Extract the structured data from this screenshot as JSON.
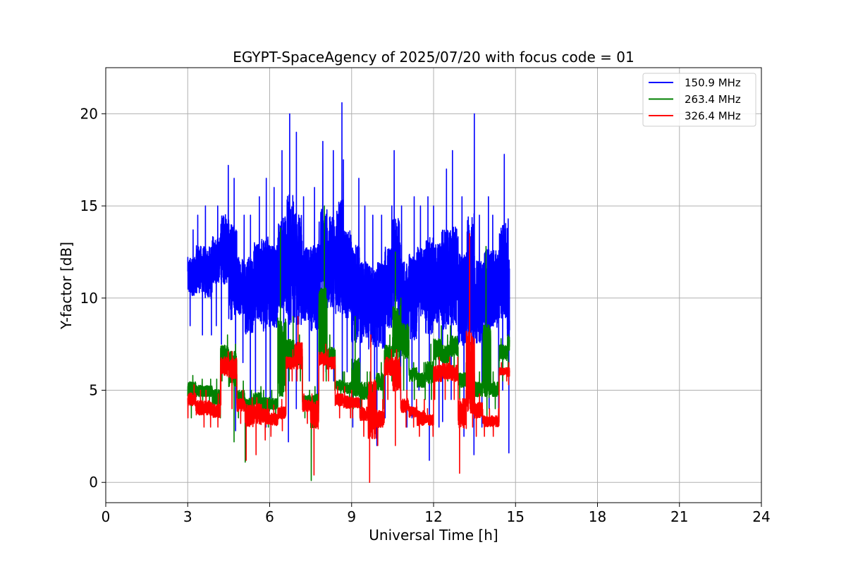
{
  "chart_data": {
    "type": "line",
    "title": "EGYPT-SpaceAgency of 2025/07/20 with focus code = 01",
    "xlabel": "Universal Time [h]",
    "ylabel": "Y-factor [dB]",
    "xlim": [
      0,
      24
    ],
    "ylim": [
      -1.1,
      22.5
    ],
    "xticks": [
      0,
      3,
      6,
      9,
      12,
      15,
      18,
      21,
      24
    ],
    "yticks": [
      0,
      5,
      10,
      15,
      20
    ],
    "grid": true,
    "legend_position": "top-right",
    "series": [
      {
        "name": "150.9 MHz",
        "color": "#0000ff",
        "x": [
          3.0,
          3.3,
          3.6,
          3.9,
          4.2,
          4.5,
          4.8,
          5.1,
          5.4,
          5.7,
          6.0,
          6.3,
          6.6,
          6.9,
          7.2,
          7.5,
          7.8,
          8.1,
          8.4,
          8.7,
          9.0,
          9.3,
          9.6,
          9.9,
          10.2,
          10.5,
          10.8,
          11.1,
          11.4,
          11.7,
          12.0,
          12.3,
          12.6,
          12.9,
          13.2,
          13.5,
          13.8,
          14.1,
          14.4,
          14.7
        ],
        "y": [
          11.0,
          11.5,
          11.0,
          12.0,
          12.5,
          12.0,
          10.5,
          10.5,
          11.0,
          11.0,
          10.5,
          11.5,
          12.0,
          11.0,
          10.5,
          10.5,
          12.0,
          11.5,
          11.0,
          10.5,
          10.0,
          9.5,
          9.5,
          10.0,
          11.0,
          11.5,
          9.5,
          10.0,
          11.0,
          11.5,
          11.5,
          11.0,
          10.5,
          10.0,
          10.5,
          10.0,
          10.5,
          11.0,
          11.0,
          10.5
        ],
        "y_high": [
          13.7,
          14.5,
          15.0,
          15.0,
          17.2,
          16.5,
          14.5,
          14.5,
          15.5,
          16.5,
          16.0,
          18.0,
          20.0,
          19.0,
          15.5,
          16.0,
          18.5,
          18.0,
          20.6,
          17.5,
          16.5,
          15.0,
          14.5,
          14.5,
          15.0,
          18.0,
          15.0,
          15.5,
          15.0,
          15.5,
          15.0,
          17.0,
          18.0,
          15.5,
          20.0,
          14.5,
          15.5,
          14.5,
          17.8,
          14.3
        ],
        "y_low": [
          8.5,
          8.0,
          8.0,
          8.5,
          7.5,
          2.8,
          6.5,
          3.5,
          4.5,
          3.0,
          4.5,
          5.5,
          2.2,
          4.0,
          5.5,
          4.0,
          6.0,
          5.5,
          5.5,
          6.0,
          3.0,
          4.0,
          3.0,
          2.0,
          3.5,
          4.5,
          3.0,
          3.5,
          5.0,
          1.2,
          3.0,
          3.3,
          4.5,
          2.5,
          1.5,
          3.0,
          4.0,
          3.5,
          5.0,
          1.6
        ]
      },
      {
        "name": "263.4 MHz",
        "color": "#008000",
        "x": [
          3.0,
          3.3,
          3.6,
          3.9,
          4.2,
          4.5,
          4.8,
          5.1,
          5.4,
          5.7,
          6.0,
          6.3,
          6.6,
          6.9,
          7.2,
          7.5,
          7.8,
          8.1,
          8.4,
          8.7,
          9.0,
          9.3,
          9.6,
          9.9,
          10.2,
          10.5,
          10.8,
          11.1,
          11.4,
          11.7,
          12.0,
          12.3,
          12.6,
          12.9,
          13.2,
          13.5,
          13.8,
          14.1,
          14.4,
          14.7
        ],
        "y": [
          5.2,
          5.0,
          5.0,
          4.6,
          7.0,
          6.8,
          4.6,
          4.3,
          4.6,
          4.3,
          4.2,
          5.0,
          6.8,
          6.8,
          4.5,
          4.5,
          7.0,
          6.8,
          5.2,
          5.0,
          5.0,
          5.0,
          5.0,
          5.5,
          7.0,
          7.2,
          7.6,
          6.0,
          5.5,
          5.8,
          7.2,
          7.0,
          7.5,
          5.5,
          5.5,
          5.0,
          5.2,
          5.0,
          7.2,
          7.8
        ],
        "y_high": [
          5.8,
          5.6,
          5.6,
          5.6,
          8.0,
          7.5,
          5.5,
          5.0,
          5.2,
          5.0,
          5.0,
          13.8,
          9.0,
          8.0,
          5.0,
          5.2,
          15.0,
          8.0,
          6.0,
          6.0,
          9.0,
          6.0,
          6.0,
          6.5,
          8.0,
          12.5,
          10.0,
          6.5,
          6.5,
          7.5,
          8.5,
          8.0,
          8.5,
          6.5,
          6.5,
          6.0,
          12.8,
          6.0,
          7.8,
          8.0
        ],
        "y_low": [
          3.5,
          4.0,
          4.0,
          3.5,
          5.5,
          2.2,
          3.5,
          1.1,
          3.5,
          3.0,
          3.5,
          4.0,
          5.5,
          5.5,
          3.5,
          0.1,
          5.5,
          5.0,
          4.5,
          4.5,
          4.0,
          3.5,
          3.5,
          4.0,
          5.5,
          5.5,
          5.0,
          4.5,
          4.5,
          4.5,
          5.5,
          5.5,
          5.5,
          4.5,
          4.5,
          4.0,
          3.5,
          4.0,
          5.5,
          6.0
        ]
      },
      {
        "name": "326.4 MHz",
        "color": "#ff0000",
        "x": [
          3.0,
          3.3,
          3.6,
          3.9,
          4.2,
          4.5,
          4.8,
          5.1,
          5.4,
          5.7,
          6.0,
          6.3,
          6.6,
          6.9,
          7.2,
          7.5,
          7.8,
          8.1,
          8.4,
          8.7,
          9.0,
          9.3,
          9.6,
          9.9,
          10.2,
          10.5,
          10.8,
          11.1,
          11.4,
          11.7,
          12.0,
          12.3,
          12.6,
          12.9,
          13.2,
          13.5,
          13.8,
          14.1,
          14.4,
          14.7
        ],
        "y": [
          4.5,
          4.0,
          4.0,
          3.8,
          6.6,
          6.5,
          4.2,
          4.0,
          4.0,
          3.6,
          3.4,
          3.8,
          6.5,
          6.5,
          4.2,
          4.2,
          6.8,
          6.5,
          4.5,
          4.3,
          4.3,
          3.8,
          3.6,
          3.5,
          6.5,
          6.5,
          4.2,
          3.8,
          3.4,
          3.4,
          6.0,
          6.2,
          6.0,
          4.2,
          4.0,
          4.0,
          3.3,
          3.3,
          6.0,
          6.0
        ],
        "y_high": [
          5.3,
          5.0,
          5.0,
          4.8,
          7.1,
          7.1,
          5.0,
          4.6,
          4.6,
          4.5,
          4.2,
          4.5,
          7.2,
          9.0,
          4.8,
          4.8,
          7.5,
          7.2,
          5.2,
          5.2,
          5.0,
          4.5,
          8.0,
          4.5,
          7.2,
          7.2,
          5.0,
          4.5,
          4.5,
          4.0,
          6.8,
          6.8,
          6.8,
          5.0,
          13.5,
          4.8,
          4.0,
          4.0,
          6.5,
          6.5
        ],
        "y_low": [
          3.5,
          3.0,
          3.0,
          3.0,
          4.2,
          4.0,
          3.2,
          1.2,
          1.5,
          2.3,
          2.5,
          2.8,
          5.5,
          5.5,
          3.2,
          0.4,
          5.5,
          5.5,
          3.5,
          3.5,
          3.5,
          2.5,
          0.0,
          2.0,
          4.5,
          2.0,
          3.0,
          3.0,
          2.5,
          2.5,
          4.5,
          4.5,
          4.5,
          0.5,
          3.0,
          2.5,
          2.5,
          2.5,
          5.5,
          5.3
        ]
      }
    ]
  }
}
